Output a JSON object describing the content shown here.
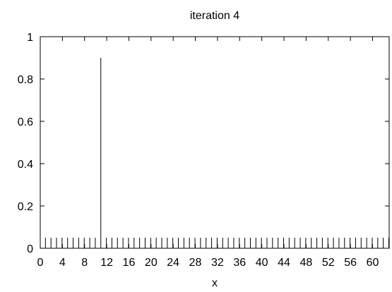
{
  "chart_data": {
    "type": "bar",
    "title": "iteration 4",
    "xlabel": "x",
    "ylabel": "",
    "xlim": [
      0,
      63
    ],
    "ylim": [
      0,
      1
    ],
    "x_ticks": [
      0,
      4,
      8,
      12,
      16,
      20,
      24,
      28,
      32,
      36,
      40,
      44,
      48,
      52,
      56,
      60
    ],
    "y_ticks": [
      0,
      0.2,
      0.4,
      0.6,
      0.8,
      1
    ],
    "y_tick_labels": [
      "0",
      "0.2",
      "0.4",
      "0.6",
      "0.8",
      "1"
    ],
    "grid": false,
    "legend": "none",
    "x": [
      1,
      2,
      3,
      4,
      5,
      6,
      7,
      8,
      9,
      10,
      11,
      12,
      13,
      14,
      15,
      16,
      17,
      18,
      19,
      20,
      21,
      22,
      23,
      24,
      25,
      26,
      27,
      28,
      29,
      30,
      31,
      32,
      33,
      34,
      35,
      36,
      37,
      38,
      39,
      40,
      41,
      42,
      43,
      44,
      45,
      46,
      47,
      48,
      49,
      50,
      51,
      52,
      53,
      54,
      55,
      56,
      57,
      58,
      59,
      60,
      61,
      62,
      63
    ],
    "values": [
      0.05,
      0.05,
      0.05,
      0.05,
      0.05,
      0.05,
      0.05,
      0.05,
      0.05,
      0.05,
      0.9,
      0.05,
      0.05,
      0.05,
      0.05,
      0.05,
      0.05,
      0.05,
      0.05,
      0.05,
      0.05,
      0.05,
      0.05,
      0.05,
      0.05,
      0.05,
      0.05,
      0.05,
      0.05,
      0.05,
      0.05,
      0.05,
      0.05,
      0.05,
      0.05,
      0.05,
      0.05,
      0.05,
      0.05,
      0.05,
      0.05,
      0.05,
      0.05,
      0.05,
      0.05,
      0.05,
      0.05,
      0.05,
      0.05,
      0.05,
      0.05,
      0.05,
      0.05,
      0.05,
      0.05,
      0.05,
      0.05,
      0.05,
      0.05,
      0.05,
      0.05,
      0.05,
      0.05
    ]
  }
}
